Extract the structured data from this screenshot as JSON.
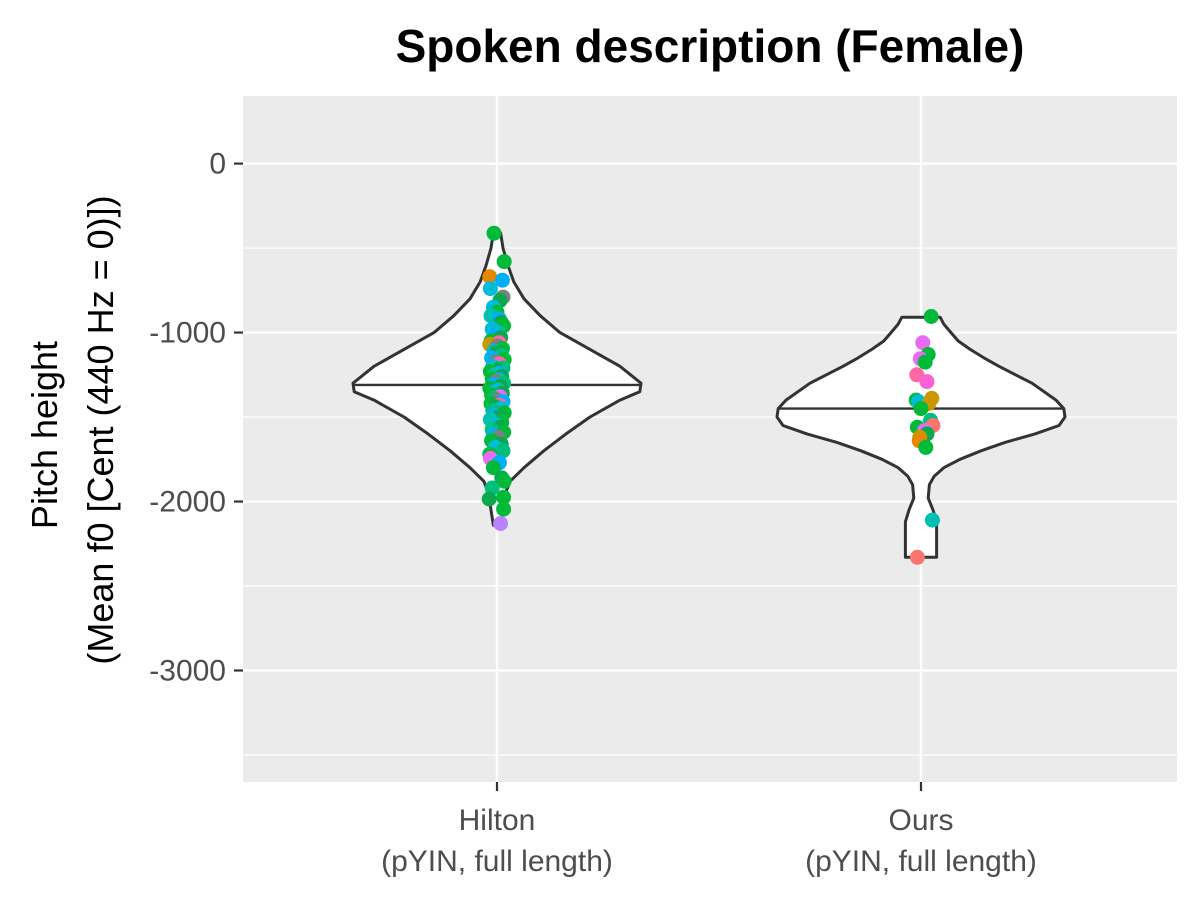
{
  "chart_data": {
    "type": "scatter",
    "subtype": "violin-with-jittered-points",
    "title": "Spoken description (Female)",
    "ylabel_line1": "Pitch height",
    "ylabel_line2": "(Mean f0 [Cent (440 Hz = 0)])",
    "xlabel": "",
    "ylim": [
      -3660,
      400
    ],
    "yticks": [
      0,
      -1000,
      -2000,
      -3000
    ],
    "ytick_labels": [
      "0",
      "-1000",
      "-2000",
      "-3000"
    ],
    "grid": true,
    "legend": "none",
    "categories": [
      {
        "line1": "Hilton",
        "line2": "(pYIN, full length)"
      },
      {
        "line1": "Ours",
        "line2": "(pYIN, full length)"
      }
    ],
    "colors": {
      "panel": "#ebebeb",
      "grid": "#ffffff",
      "violin_stroke": "#333333",
      "points": [
        "#f8766d",
        "#e58700",
        "#c99800",
        "#a3a500",
        "#6bb100",
        "#00ba38",
        "#00bf7d",
        "#00c0af",
        "#00bcd8",
        "#00b0f6",
        "#619cff",
        "#b983ff",
        "#e76bf3",
        "#fd61d1",
        "#ff67a4",
        "#7f7f7f",
        "#0ca84f"
      ]
    },
    "series": [
      {
        "category": "Hilton",
        "median": -1310,
        "min": -2140,
        "max": -410,
        "violin_profile": [
          [
            -410,
            0.06
          ],
          [
            -500,
            0.1
          ],
          [
            -600,
            0.18
          ],
          [
            -700,
            0.28
          ],
          [
            -800,
            0.45
          ],
          [
            -900,
            0.72
          ],
          [
            -1000,
            1.05
          ],
          [
            -1100,
            1.55
          ],
          [
            -1200,
            2.05
          ],
          [
            -1300,
            2.4
          ],
          [
            -1350,
            2.38
          ],
          [
            -1400,
            2.05
          ],
          [
            -1500,
            1.55
          ],
          [
            -1600,
            1.15
          ],
          [
            -1700,
            0.78
          ],
          [
            -1800,
            0.45
          ],
          [
            -1880,
            0.22
          ],
          [
            -1950,
            0.14
          ],
          [
            -2050,
            0.1
          ],
          [
            -2140,
            0.06
          ]
        ],
        "points": [
          [
            -412,
            5,
            -0.05
          ],
          [
            -580,
            5,
            0.12
          ],
          [
            -670,
            1,
            -0.12
          ],
          [
            -740,
            8,
            -0.11
          ],
          [
            -690,
            9,
            0.09
          ],
          [
            -790,
            15,
            0.1
          ],
          [
            -810,
            16,
            0.05
          ],
          [
            -850,
            8,
            -0.06
          ],
          [
            -880,
            5,
            0.0
          ],
          [
            -900,
            7,
            -0.1
          ],
          [
            -920,
            9,
            0.04
          ],
          [
            -940,
            16,
            0.07
          ],
          [
            -960,
            5,
            0.11
          ],
          [
            -980,
            8,
            -0.08
          ],
          [
            -1000,
            7,
            0.02
          ],
          [
            -1010,
            9,
            -0.03
          ],
          [
            -1030,
            16,
            0.06
          ],
          [
            -1050,
            5,
            -0.1
          ],
          [
            -1060,
            14,
            0.03
          ],
          [
            -1070,
            2,
            -0.12
          ],
          [
            -1080,
            15,
            0.01
          ],
          [
            -1095,
            5,
            0.09
          ],
          [
            -1110,
            8,
            -0.05
          ],
          [
            -1120,
            16,
            -0.01
          ],
          [
            -1135,
            6,
            0.07
          ],
          [
            -1150,
            9,
            -0.09
          ],
          [
            -1160,
            5,
            0.12
          ],
          [
            -1175,
            15,
            -0.02
          ],
          [
            -1185,
            14,
            0.04
          ],
          [
            -1200,
            8,
            -0.07
          ],
          [
            -1210,
            6,
            0.1
          ],
          [
            -1220,
            16,
            0.0
          ],
          [
            -1230,
            5,
            -0.11
          ],
          [
            -1240,
            9,
            0.05
          ],
          [
            -1250,
            7,
            -0.04
          ],
          [
            -1260,
            16,
            0.08
          ],
          [
            -1270,
            5,
            -0.08
          ],
          [
            -1280,
            8,
            0.03
          ],
          [
            -1290,
            15,
            -0.01
          ],
          [
            -1300,
            6,
            0.11
          ],
          [
            -1310,
            9,
            -0.06
          ],
          [
            -1320,
            16,
            0.06
          ],
          [
            -1330,
            5,
            -0.12
          ],
          [
            -1340,
            7,
            0.02
          ],
          [
            -1350,
            8,
            -0.03
          ],
          [
            -1360,
            16,
            0.09
          ],
          [
            -1370,
            5,
            -0.09
          ],
          [
            -1380,
            12,
            0.05
          ],
          [
            -1390,
            6,
            -0.05
          ],
          [
            -1400,
            15,
            0.0
          ],
          [
            -1410,
            9,
            0.1
          ],
          [
            -1420,
            5,
            -0.1
          ],
          [
            -1430,
            14,
            0.04
          ],
          [
            -1440,
            16,
            -0.02
          ],
          [
            -1450,
            8,
            0.07
          ],
          [
            -1460,
            6,
            -0.07
          ],
          [
            -1475,
            5,
            0.12
          ],
          [
            -1490,
            9,
            -0.04
          ],
          [
            -1500,
            16,
            0.03
          ],
          [
            -1515,
            7,
            -0.11
          ],
          [
            -1530,
            5,
            0.08
          ],
          [
            -1545,
            8,
            -0.01
          ],
          [
            -1560,
            16,
            0.05
          ],
          [
            -1575,
            6,
            -0.08
          ],
          [
            -1590,
            5,
            0.11
          ],
          [
            -1605,
            9,
            -0.06
          ],
          [
            -1620,
            15,
            0.02
          ],
          [
            -1640,
            5,
            -0.09
          ],
          [
            -1660,
            16,
            0.07
          ],
          [
            -1680,
            8,
            -0.03
          ],
          [
            -1700,
            6,
            0.1
          ],
          [
            -1720,
            5,
            -0.12
          ],
          [
            -1745,
            12,
            -0.11
          ],
          [
            -1770,
            9,
            0.04
          ],
          [
            -1800,
            5,
            -0.06
          ],
          [
            -1860,
            16,
            0.08
          ],
          [
            -1880,
            5,
            0.12
          ],
          [
            -1920,
            6,
            -0.08
          ],
          [
            -1975,
            5,
            0.11
          ],
          [
            -1985,
            16,
            -0.13
          ],
          [
            -2045,
            5,
            0.11
          ],
          [
            -2130,
            11,
            0.06
          ]
        ]
      },
      {
        "category": "Ours",
        "median": -1450,
        "min": -2330,
        "max": -910,
        "violin_profile": [
          [
            -910,
            0.32
          ],
          [
            -950,
            0.38
          ],
          [
            -1000,
            0.5
          ],
          [
            -1050,
            0.62
          ],
          [
            -1100,
            0.82
          ],
          [
            -1150,
            1.05
          ],
          [
            -1200,
            1.3
          ],
          [
            -1300,
            1.85
          ],
          [
            -1400,
            2.25
          ],
          [
            -1450,
            2.38
          ],
          [
            -1500,
            2.4
          ],
          [
            -1550,
            2.3
          ],
          [
            -1600,
            1.9
          ],
          [
            -1650,
            1.4
          ],
          [
            -1700,
            1.0
          ],
          [
            -1750,
            0.65
          ],
          [
            -1800,
            0.38
          ],
          [
            -1850,
            0.22
          ],
          [
            -1900,
            0.14
          ],
          [
            -1980,
            0.12
          ],
          [
            -2050,
            0.2
          ],
          [
            -2120,
            0.26
          ],
          [
            -2200,
            0.26
          ],
          [
            -2330,
            0.26
          ]
        ],
        "points": [
          [
            -905,
            5,
            0.17
          ],
          [
            -1060,
            12,
            0.03
          ],
          [
            -1130,
            5,
            0.12
          ],
          [
            -1155,
            12,
            -0.01
          ],
          [
            -1175,
            5,
            0.07
          ],
          [
            -1250,
            14,
            -0.07
          ],
          [
            -1290,
            13,
            0.1
          ],
          [
            -1390,
            2,
            0.18
          ],
          [
            -1400,
            5,
            -0.08
          ],
          [
            -1410,
            8,
            -0.04
          ],
          [
            -1420,
            2,
            0.13
          ],
          [
            -1450,
            5,
            0.0
          ],
          [
            -1520,
            6,
            0.16
          ],
          [
            -1550,
            0,
            0.2
          ],
          [
            -1560,
            5,
            -0.06
          ],
          [
            -1580,
            12,
            0.06
          ],
          [
            -1600,
            16,
            0.1
          ],
          [
            -1620,
            2,
            -0.02
          ],
          [
            -1640,
            1,
            -0.03
          ],
          [
            -1680,
            5,
            0.08
          ],
          [
            -2110,
            7,
            0.19
          ],
          [
            -2330,
            0,
            -0.06
          ]
        ]
      }
    ]
  }
}
